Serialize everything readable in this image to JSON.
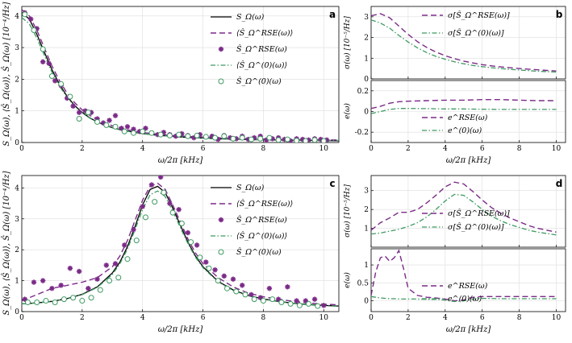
{
  "colors": {
    "purple": "#7b2a88",
    "green": "#3f9a62",
    "greenFill": "#ffffff",
    "black": "#000000"
  },
  "chart_data": [
    {
      "id": "a",
      "type": "line",
      "panel_label": "a",
      "xlabel": "ω/2π [kHz]",
      "ylabel": "S_Ω(ω), ⟨Ŝ_Ω(ω)⟩, Ŝ_Ω(ω) [10⁻⁴/Hz]",
      "xlim": [
        0,
        10.5
      ],
      "ylim": [
        0,
        4.3
      ],
      "xticks": [
        "0",
        "2",
        "4",
        "6",
        "8",
        "10"
      ],
      "yticks": [
        "0",
        "1",
        "2",
        "3",
        "4"
      ],
      "legend": [
        "S_Ω(ω)",
        "⟨Ŝ_Ω^RSE(ω)⟩",
        "Ŝ_Ω^RSE(ω)",
        "⟨Ŝ_Ω^(0)(ω)⟩",
        "Ŝ_Ω^(0)(ω)"
      ],
      "x_curve": [
        0,
        0.25,
        0.5,
        0.75,
        1,
        1.25,
        1.5,
        1.75,
        2,
        2.25,
        2.5,
        2.75,
        3,
        3.25,
        3.5,
        3.75,
        4,
        4.5,
        5,
        5.5,
        6,
        6.5,
        7,
        7.5,
        8,
        8.5,
        9,
        9.5,
        10,
        10.5
      ],
      "series": [
        {
          "name": "S_Ω(ω)",
          "style": "solid-black",
          "values": [
            4.1,
            3.9,
            3.42,
            2.85,
            2.3,
            1.84,
            1.46,
            1.17,
            0.95,
            0.78,
            0.65,
            0.55,
            0.47,
            0.41,
            0.36,
            0.32,
            0.28,
            0.23,
            0.19,
            0.16,
            0.14,
            0.12,
            0.105,
            0.095,
            0.085,
            0.078,
            0.072,
            0.066,
            0.06,
            0.055
          ]
        },
        {
          "name": "⟨Ŝ_Ω^RSE(ω)⟩",
          "style": "dash-purple",
          "values": [
            4.2,
            4.0,
            3.55,
            2.98,
            2.42,
            1.95,
            1.56,
            1.26,
            1.03,
            0.86,
            0.72,
            0.61,
            0.53,
            0.46,
            0.4,
            0.36,
            0.32,
            0.26,
            0.22,
            0.19,
            0.17,
            0.15,
            0.13,
            0.12,
            0.11,
            0.1,
            0.095,
            0.09,
            0.085,
            0.08
          ]
        },
        {
          "name": "⟨Ŝ_Ω^(0)(ω)⟩",
          "style": "dashdot-green",
          "values": [
            3.95,
            3.75,
            3.3,
            2.75,
            2.22,
            1.78,
            1.42,
            1.14,
            0.93,
            0.77,
            0.64,
            0.54,
            0.46,
            0.4,
            0.35,
            0.31,
            0.28,
            0.23,
            0.19,
            0.16,
            0.14,
            0.12,
            0.11,
            0.1,
            0.09,
            0.085,
            0.08,
            0.075,
            0.07,
            0.065
          ]
        }
      ],
      "scatter": [
        {
          "name": "Ŝ_Ω^RSE(ω)",
          "style": "star-purple",
          "x": [
            0.1,
            0.3,
            0.5,
            0.7,
            0.9,
            1.1,
            1.3,
            1.5,
            1.7,
            1.9,
            2.1,
            2.3,
            2.5,
            2.7,
            2.9,
            3.1,
            3.3,
            3.5,
            3.7,
            3.9,
            4.1,
            4.3,
            4.5,
            4.7,
            4.9,
            5.1,
            5.3,
            5.5,
            5.7,
            5.9,
            6.1,
            6.3,
            6.5,
            6.7,
            6.9,
            7.1,
            7.3,
            7.5,
            7.7,
            7.9,
            8.1,
            8.3,
            8.5,
            8.7,
            8.9,
            9.1,
            9.3,
            9.5,
            9.7,
            9.9,
            10.1
          ],
          "y": [
            4.1,
            3.9,
            3.6,
            2.55,
            2.5,
            1.95,
            1.8,
            1.4,
            1.15,
            0.95,
            1.0,
            0.95,
            0.75,
            0.62,
            0.7,
            0.85,
            0.45,
            0.5,
            0.42,
            0.35,
            0.45,
            0.3,
            0.25,
            0.32,
            0.25,
            0.2,
            0.28,
            0.22,
            0.15,
            0.25,
            0.18,
            0.2,
            0.1,
            0.22,
            0.15,
            0.12,
            0.2,
            0.1,
            0.15,
            0.2,
            0.08,
            0.12,
            0.15,
            0.1,
            0.05,
            0.12,
            0.1,
            0.08,
            0.12,
            0.1,
            0.08
          ]
        },
        {
          "name": "Ŝ_Ω^(0)(ω)",
          "style": "circle-green",
          "x": [
            0.1,
            0.4,
            0.7,
            1.0,
            1.3,
            1.6,
            1.9,
            2.2,
            2.5,
            2.8,
            3.1,
            3.4,
            3.7,
            4.0,
            4.3,
            4.6,
            4.9,
            5.2,
            5.5,
            5.8,
            6.1,
            6.4,
            6.7,
            7.0,
            7.3,
            7.6,
            7.9,
            8.2,
            8.5,
            8.8,
            9.1,
            9.4,
            9.7,
            10.0
          ],
          "y": [
            4.05,
            3.55,
            2.95,
            2.1,
            1.85,
            1.45,
            0.75,
            0.95,
            0.65,
            0.55,
            0.5,
            0.35,
            0.3,
            0.35,
            0.3,
            0.25,
            0.22,
            0.25,
            0.2,
            0.22,
            0.18,
            0.15,
            0.2,
            0.12,
            0.15,
            0.1,
            0.12,
            0.15,
            0.08,
            0.1,
            0.06,
            0.05,
            0.08,
            0.05
          ]
        }
      ]
    },
    {
      "id": "b_top",
      "type": "line",
      "panel_label": "b",
      "xlabel": "",
      "ylabel": "σ(ω) [10⁻⁵/Hz]",
      "xlim": [
        0,
        10.5
      ],
      "ylim": [
        0,
        3.5
      ],
      "xticks": [],
      "yticks": [
        "0",
        "1",
        "2",
        "3"
      ],
      "legend": [
        "σ[Ŝ_Ω^RSE(ω)]",
        "σ[Ŝ_Ω^(0)(ω)]"
      ],
      "x_curve": [
        0,
        0.5,
        1,
        1.5,
        2,
        2.5,
        3,
        3.5,
        4,
        4.5,
        5,
        5.5,
        6,
        6.5,
        7,
        7.5,
        8,
        8.5,
        9,
        9.5,
        10
      ],
      "series": [
        {
          "name": "σ[Ŝ_Ω^RSE(ω)]",
          "style": "dash-purple",
          "values": [
            3.05,
            3.15,
            2.95,
            2.55,
            2.15,
            1.8,
            1.52,
            1.3,
            1.12,
            0.98,
            0.86,
            0.77,
            0.69,
            0.63,
            0.58,
            0.54,
            0.5,
            0.47,
            0.44,
            0.41,
            0.38
          ]
        },
        {
          "name": "σ[Ŝ_Ω^(0)(ω)]",
          "style": "dashdot-green",
          "values": [
            2.85,
            2.7,
            2.45,
            2.1,
            1.78,
            1.5,
            1.27,
            1.09,
            0.95,
            0.83,
            0.73,
            0.65,
            0.59,
            0.54,
            0.5,
            0.46,
            0.43,
            0.4,
            0.37,
            0.35,
            0.33
          ]
        }
      ]
    },
    {
      "id": "b_bottom",
      "type": "line",
      "panel_label": "",
      "xlabel": "ω/2π [kHz]",
      "ylabel": "e(ω)",
      "xlim": [
        0,
        10.5
      ],
      "ylim": [
        -0.3,
        0.3
      ],
      "xticks": [
        "0",
        "2",
        "4",
        "6",
        "8",
        "10"
      ],
      "yticks": [
        "-0.2",
        "0",
        "0.2"
      ],
      "legend": [
        "e^RSE(ω)",
        "e^(0)(ω)"
      ],
      "x_curve": [
        0,
        0.5,
        1,
        1.5,
        2,
        3,
        4,
        5,
        6,
        7,
        8,
        9,
        10
      ],
      "series": [
        {
          "name": "e^RSE(ω)",
          "style": "dash-purple",
          "values": [
            0.03,
            0.05,
            0.08,
            0.095,
            0.1,
            0.105,
            0.11,
            0.11,
            0.115,
            0.115,
            0.11,
            0.105,
            0.105
          ]
        },
        {
          "name": "e^(0)(ω)",
          "style": "dashdot-green",
          "values": [
            -0.02,
            0,
            0.02,
            0.03,
            0.03,
            0.028,
            0.025,
            0.025,
            0.022,
            0.02,
            0.02,
            0.02,
            0.02
          ]
        }
      ]
    },
    {
      "id": "c",
      "type": "line",
      "panel_label": "c",
      "xlabel": "ω/2π [kHz]",
      "ylabel": "S_Ω(ω), ⟨Ŝ_Ω(ω)⟩, Ŝ_Ω(ω) [10⁻⁴/Hz]",
      "xlim": [
        0,
        10.5
      ],
      "ylim": [
        0,
        4.4
      ],
      "xticks": [
        "0",
        "2",
        "4",
        "6",
        "8",
        "10"
      ],
      "yticks": [
        "0",
        "1",
        "2",
        "3",
        "4"
      ],
      "legend": [
        "S_Ω(ω)",
        "⟨Ŝ_Ω^RSE(ω)⟩",
        "Ŝ_Ω^RSE(ω)",
        "⟨Ŝ_Ω^(0)(ω)⟩",
        "Ŝ_Ω^(0)(ω)"
      ],
      "x_curve": [
        0,
        0.5,
        1,
        1.5,
        2,
        2.5,
        3,
        3.25,
        3.5,
        3.75,
        4,
        4.25,
        4.5,
        4.75,
        5,
        5.25,
        5.5,
        5.75,
        6,
        6.5,
        7,
        7.5,
        8,
        8.5,
        9,
        9.5,
        10,
        10.5
      ],
      "series": [
        {
          "name": "S_Ω(ω)",
          "style": "solid-black",
          "values": [
            0.25,
            0.28,
            0.33,
            0.42,
            0.56,
            0.8,
            1.25,
            1.6,
            2.1,
            2.75,
            3.45,
            3.95,
            4.05,
            3.85,
            3.35,
            2.8,
            2.25,
            1.8,
            1.45,
            0.98,
            0.7,
            0.52,
            0.41,
            0.33,
            0.27,
            0.23,
            0.2,
            0.18
          ]
        },
        {
          "name": "⟨Ŝ_Ω^RSE(ω)⟩",
          "style": "dash-purple",
          "values": [
            0.35,
            0.55,
            0.75,
            0.85,
            0.95,
            1.1,
            1.45,
            1.8,
            2.3,
            2.95,
            3.6,
            4.05,
            4.15,
            3.95,
            3.45,
            2.9,
            2.35,
            1.9,
            1.55,
            1.1,
            0.8,
            0.6,
            0.48,
            0.4,
            0.33,
            0.28,
            0.24,
            0.22
          ]
        },
        {
          "name": "⟨Ŝ_Ω^(0)(ω)⟩",
          "style": "dashdot-green",
          "values": [
            0.25,
            0.28,
            0.33,
            0.42,
            0.55,
            0.78,
            1.2,
            1.55,
            2.02,
            2.65,
            3.3,
            3.78,
            3.9,
            3.72,
            3.25,
            2.72,
            2.2,
            1.76,
            1.42,
            0.96,
            0.68,
            0.51,
            0.4,
            0.32,
            0.26,
            0.22,
            0.19,
            0.17
          ]
        }
      ],
      "scatter": [
        {
          "name": "Ŝ_Ω^RSE(ω)",
          "style": "star-purple",
          "x": [
            0.1,
            0.4,
            0.7,
            1.0,
            1.3,
            1.6,
            1.9,
            2.2,
            2.5,
            2.8,
            3.1,
            3.4,
            3.7,
            4.0,
            4.3,
            4.6,
            4.9,
            5.2,
            5.5,
            5.8,
            6.1,
            6.4,
            6.7,
            7.0,
            7.3,
            7.6,
            7.9,
            8.2,
            8.5,
            8.8,
            9.1,
            9.4,
            9.7,
            10.0
          ],
          "y": [
            0.4,
            0.95,
            1.0,
            0.75,
            0.85,
            1.4,
            1.3,
            0.75,
            1.05,
            1.5,
            1.55,
            2.15,
            2.65,
            3.4,
            4.1,
            4.35,
            3.5,
            3.3,
            2.55,
            2.15,
            1.6,
            1.35,
            1.15,
            1.05,
            0.85,
            0.55,
            0.45,
            0.75,
            0.4,
            0.8,
            0.35,
            0.35,
            0.4,
            0.2
          ]
        },
        {
          "name": "Ŝ_Ω^(0)(ω)",
          "style": "circle-green",
          "x": [
            0.2,
            0.5,
            0.8,
            1.1,
            1.4,
            1.7,
            2.0,
            2.3,
            2.6,
            2.9,
            3.2,
            3.5,
            3.8,
            4.1,
            4.4,
            4.7,
            5.0,
            5.3,
            5.6,
            5.9,
            6.2,
            6.5,
            6.8,
            7.1,
            7.4,
            7.7,
            8.0,
            8.3,
            8.6,
            8.9,
            9.2,
            9.5,
            9.8
          ],
          "y": [
            0.3,
            0.3,
            0.35,
            0.3,
            0.4,
            0.45,
            0.35,
            0.45,
            0.7,
            1.0,
            1.1,
            1.7,
            2.3,
            3.05,
            3.55,
            3.85,
            3.2,
            2.85,
            2.25,
            1.75,
            1.4,
            1.0,
            0.75,
            0.65,
            0.55,
            0.4,
            0.35,
            0.4,
            0.3,
            0.25,
            0.2,
            0.25,
            0.18
          ]
        }
      ]
    },
    {
      "id": "d_top",
      "type": "line",
      "panel_label": "d",
      "xlabel": "",
      "ylabel": "σ(ω) [10⁻⁵/Hz]",
      "xlim": [
        0,
        10.5
      ],
      "ylim": [
        0,
        3.8
      ],
      "xticks": [],
      "yticks": [
        "1",
        "2",
        "3"
      ],
      "legend": [
        "σ[Ŝ_Ω^RSE(ω)]",
        "σ[Ŝ_Ω^(0)(ω)]"
      ],
      "x_curve": [
        0,
        0.5,
        1,
        1.5,
        2,
        2.5,
        3,
        3.5,
        4,
        4.5,
        5,
        5.5,
        6,
        6.5,
        7,
        7.5,
        8,
        8.5,
        9,
        9.5,
        10
      ],
      "series": [
        {
          "name": "σ[Ŝ_Ω^RSE(ω)]",
          "style": "dash-purple",
          "values": [
            0.9,
            1.3,
            1.55,
            1.85,
            1.85,
            2.0,
            2.35,
            2.75,
            3.2,
            3.45,
            3.35,
            2.95,
            2.5,
            2.1,
            1.8,
            1.55,
            1.35,
            1.15,
            1.0,
            0.9,
            0.8
          ]
        },
        {
          "name": "σ[Ŝ_Ω^(0)(ω)]",
          "style": "dashdot-green",
          "values": [
            0.7,
            0.75,
            0.85,
            0.95,
            1.1,
            1.3,
            1.6,
            2.0,
            2.45,
            2.8,
            2.75,
            2.4,
            2.0,
            1.65,
            1.4,
            1.2,
            1.05,
            0.9,
            0.8,
            0.72,
            0.65
          ]
        }
      ]
    },
    {
      "id": "d_bottom",
      "type": "line",
      "panel_label": "",
      "xlabel": "ω/2π [kHz]",
      "ylabel": "e(ω)",
      "xlim": [
        0,
        10.5
      ],
      "ylim": [
        -0.3,
        1.45
      ],
      "xticks": [
        "0",
        "2",
        "4",
        "6",
        "8",
        "10"
      ],
      "yticks": [
        "0",
        "0.5",
        "1"
      ],
      "legend": [
        "e^RSE(ω)",
        "e^(0)(ω)"
      ],
      "x_curve": [
        0,
        0.25,
        0.5,
        0.75,
        1,
        1.25,
        1.5,
        1.75,
        2,
        2.5,
        3,
        3.5,
        4,
        4.5,
        5,
        5.5,
        6,
        7,
        8,
        9,
        10
      ],
      "series": [
        {
          "name": "e^RSE(ω)",
          "style": "dash-purple",
          "values": [
            0.15,
            0.8,
            1.2,
            1.25,
            1.1,
            1.2,
            1.4,
            0.9,
            0.35,
            0.15,
            0.1,
            0.08,
            0.05,
            0.0,
            0.02,
            0.1,
            0.12,
            0.12,
            0.12,
            0.12,
            0.12
          ]
        },
        {
          "name": "e^(0)(ω)",
          "style": "dashdot-green",
          "values": [
            0.12,
            0.1,
            0.08,
            0.07,
            0.06,
            0.06,
            0.05,
            0.05,
            0.05,
            0.05,
            0.04,
            0.04,
            0.02,
            -0.02,
            0.0,
            0.05,
            0.07,
            0.06,
            0.06,
            0.06,
            0.06
          ]
        }
      ]
    }
  ]
}
